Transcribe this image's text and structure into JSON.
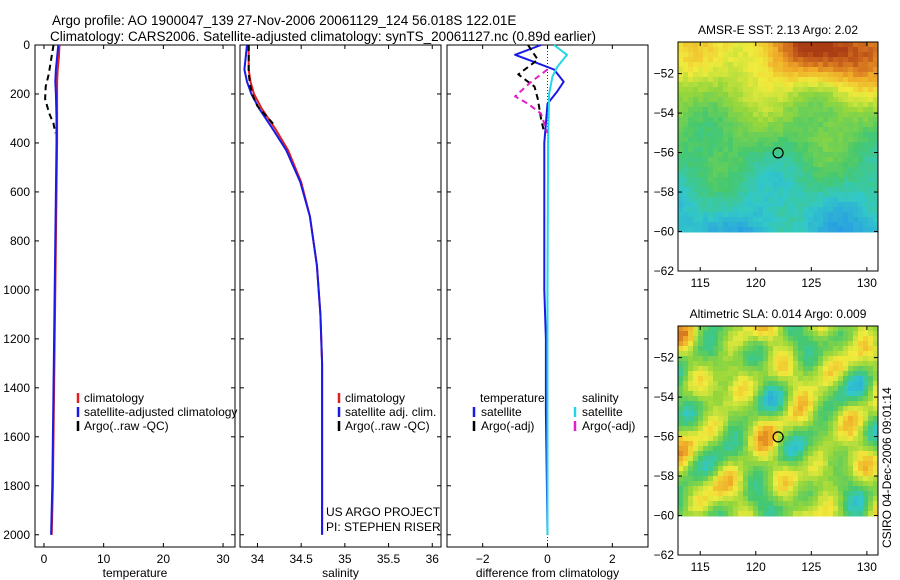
{
  "header": {
    "line1": "Argo profile: AO 1900047_139 27-Nov-2006 20061129_124 56.018S 122.01E",
    "line2": "Climatology: CARS2006. Satellite-adjusted climatology: synTS_20061127.nc (0.89d earlier)"
  },
  "side_stamp": "CSIRO 04-Dec-2006 09:01:14",
  "colors": {
    "climatology": "#e02020",
    "satellite": "#1a1ae6",
    "argo": "#000000",
    "sal_satellite": "#22d8e8",
    "sal_argo": "#e020c8",
    "marker": "#000000"
  },
  "chart_data": [
    {
      "id": "temperature",
      "type": "line",
      "xlabel": "temperature",
      "xlim": [
        -1.5,
        32
      ],
      "ylim": [
        0,
        2050
      ],
      "x_ticks": [
        0,
        10,
        20,
        30
      ],
      "y_ticks": [
        0,
        200,
        400,
        600,
        800,
        1000,
        1200,
        1400,
        1600,
        1800,
        2000
      ],
      "y_reversed": true,
      "series": [
        {
          "name": "climatology",
          "style": "solid",
          "color_key": "climatology",
          "x": [
            2.6,
            2.5,
            2.3,
            2.2,
            2.2,
            2.2,
            2.2,
            2.1,
            2.0,
            1.9,
            1.8,
            1.7,
            1.6,
            1.5,
            1.4,
            1.3
          ],
          "y": [
            0,
            50,
            100,
            150,
            200,
            300,
            400,
            600,
            800,
            1000,
            1200,
            1400,
            1600,
            1800,
            1900,
            2000
          ]
        },
        {
          "name": "satellite-adjusted climatology",
          "style": "solid",
          "color_key": "satellite",
          "x": [
            2.4,
            2.2,
            2.0,
            1.9,
            2.0,
            2.1,
            2.1,
            2.0,
            1.9,
            1.8,
            1.7,
            1.6,
            1.5,
            1.4,
            1.3,
            1.2
          ],
          "y": [
            0,
            50,
            100,
            150,
            200,
            300,
            400,
            600,
            800,
            1000,
            1200,
            1400,
            1600,
            1800,
            1900,
            2000
          ]
        },
        {
          "name": "Argo(..raw -QC)",
          "style": "dashed",
          "color_key": "argo",
          "x": [
            1.6,
            1.2,
            0.8,
            0.3,
            0.2,
            0.9,
            1.6,
            1.9
          ],
          "y": [
            0,
            60,
            120,
            170,
            220,
            280,
            320,
            360
          ]
        }
      ],
      "legend": [
        "climatology",
        "satellite-adjusted climatology",
        "Argo(..raw -QC)"
      ]
    },
    {
      "id": "salinity",
      "type": "line",
      "xlabel": "salinity",
      "xlim": [
        33.8,
        36.1
      ],
      "ylim": [
        0,
        2050
      ],
      "x_ticks": [
        34,
        34.5,
        35,
        35.5,
        36
      ],
      "x_tick_labels": [
        "34",
        "34.5",
        "35",
        "35.5",
        "36"
      ],
      "y_reversed": true,
      "series": [
        {
          "name": "climatology",
          "style": "solid",
          "color_key": "climatology",
          "x": [
            33.9,
            33.9,
            33.92,
            33.96,
            34.05,
            34.2,
            34.35,
            34.5,
            34.6,
            34.68,
            34.72,
            34.74,
            34.74,
            34.74,
            34.74
          ],
          "y": [
            0,
            100,
            150,
            200,
            260,
            340,
            430,
            560,
            700,
            900,
            1100,
            1300,
            1500,
            1800,
            2000
          ]
        },
        {
          "name": "satellite adj. clim.",
          "style": "solid",
          "color_key": "satellite",
          "x": [
            33.88,
            33.85,
            33.88,
            33.93,
            34.02,
            34.17,
            34.33,
            34.49,
            34.6,
            34.68,
            34.72,
            34.74,
            34.74,
            34.74,
            34.74
          ],
          "y": [
            0,
            100,
            150,
            200,
            260,
            340,
            430,
            560,
            700,
            900,
            1100,
            1300,
            1500,
            1800,
            2000
          ]
        },
        {
          "name": "Argo(..raw -QC)",
          "style": "dashed",
          "color_key": "argo",
          "x": [
            33.9,
            33.9,
            33.92,
            33.95,
            34.0,
            34.1,
            34.2
          ],
          "y": [
            0,
            120,
            170,
            210,
            250,
            290,
            330
          ]
        }
      ],
      "legend": [
        "climatology",
        "satellite adj. clim.",
        "Argo(..raw -QC)"
      ],
      "annotations": [
        "US ARGO PROJECT",
        "PI: STEPHEN RISER"
      ]
    },
    {
      "id": "difference",
      "type": "line",
      "xlabel": "difference from climatology",
      "xlim": [
        -3.1,
        3.1
      ],
      "ylim": [
        0,
        2050
      ],
      "x_ticks": [
        -2,
        0,
        2
      ],
      "y_reversed": true,
      "series": [
        {
          "name": "temperature satellite",
          "style": "solid",
          "color_key": "satellite",
          "x": [
            -0.2,
            -1.0,
            -0.4,
            0.2,
            0.5,
            0.3,
            0.0,
            -0.1,
            -0.1,
            -0.1,
            -0.05,
            -0.05,
            -0.02,
            0.0
          ],
          "y": [
            0,
            40,
            70,
            100,
            150,
            190,
            240,
            400,
            800,
            1000,
            1200,
            1500,
            1800,
            2000
          ]
        },
        {
          "name": "temperature Argo(-adj)",
          "style": "dashed",
          "color_key": "argo",
          "x": [
            -0.6,
            -0.3,
            -0.9,
            -0.4,
            -0.3,
            -0.2,
            -0.1
          ],
          "y": [
            0,
            60,
            120,
            170,
            220,
            300,
            360
          ]
        },
        {
          "name": "salinity satellite",
          "style": "solid",
          "color_key": "sal_satellite",
          "x": [
            0.2,
            0.6,
            0.3,
            0.15,
            0.05,
            0.02,
            0.0,
            0.0
          ],
          "y": [
            0,
            40,
            90,
            130,
            200,
            400,
            1000,
            2000
          ]
        },
        {
          "name": "salinity Argo(-adj)",
          "style": "dashed",
          "color_key": "sal_argo",
          "x": [
            0.0,
            -0.5,
            -1.0,
            -0.6,
            -0.2,
            -0.1,
            0.0
          ],
          "y": [
            100,
            150,
            210,
            240,
            280,
            320,
            360
          ]
        }
      ],
      "legend_headers": [
        "temperature",
        "salinity"
      ],
      "legend": [
        "satellite",
        "Argo(-adj)",
        "satellite",
        "Argo(-adj)"
      ]
    },
    {
      "id": "sst-map",
      "type": "heatmap",
      "title": "AMSR-E SST: 2.13  Argo: 2.02",
      "xlim": [
        113,
        131
      ],
      "ylim": [
        -62,
        -50.4
      ],
      "x_ticks": [
        115,
        120,
        125,
        130
      ],
      "y_ticks": [
        -52,
        -54,
        -56,
        -58,
        -60,
        -62
      ],
      "data_lat_range": [
        -60,
        -50.4
      ],
      "marker": {
        "lon": 122.01,
        "lat": -56.018
      }
    },
    {
      "id": "sla-map",
      "type": "heatmap",
      "title": "Altimetric SLA: 0.014  Argo: 0.009",
      "xlim": [
        113,
        131
      ],
      "ylim": [
        -62,
        -50.4
      ],
      "x_ticks": [
        115,
        120,
        125,
        130
      ],
      "y_ticks": [
        -52,
        -54,
        -56,
        -58,
        -60,
        -62
      ],
      "data_lat_range": [
        -60,
        -50.4
      ],
      "marker": {
        "lon": 122.01,
        "lat": -56.018
      }
    }
  ]
}
